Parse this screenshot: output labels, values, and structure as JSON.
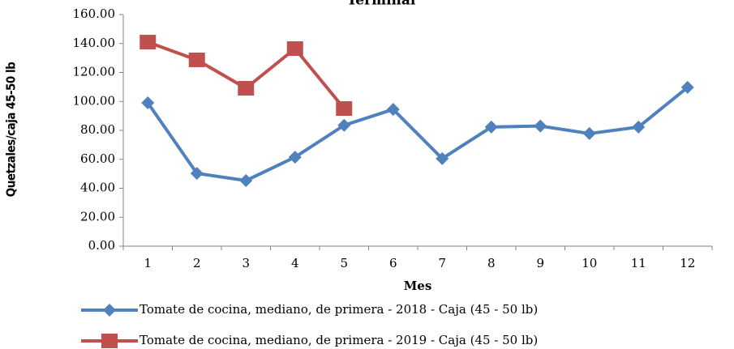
{
  "chart_data": {
    "type": "line",
    "title": "Terminal",
    "x_label": "Mes",
    "y_label": "Quetzales/caja 45-50 lb",
    "categories": [
      "1",
      "2",
      "3",
      "4",
      "5",
      "6",
      "7",
      "8",
      "9",
      "10",
      "11",
      "12"
    ],
    "series": [
      {
        "name": "Tomate de cocina, mediano, de primera - 2018 - Caja (45 - 50 lb)",
        "color": "#4f81bd",
        "marker": "diamond",
        "values": [
          99,
          50.3,
          45.3,
          61.5,
          83.5,
          94.5,
          60.5,
          82.3,
          83,
          77.8,
          82.3,
          109.7
        ]
      },
      {
        "name": "Tomate de cocina, mediano, de primera - 2019 - Caja (45 - 50 lb)",
        "color": "#c0504d",
        "marker": "square",
        "values": [
          141,
          128.7,
          109.1,
          136.5,
          95.1,
          null,
          null,
          null,
          null,
          null,
          null,
          null
        ]
      }
    ],
    "ylim": [
      0,
      160
    ],
    "yticks": [
      {
        "value": 0,
        "label": "0.00"
      },
      {
        "value": 20,
        "label": "20.00"
      },
      {
        "value": 40,
        "label": "40.00"
      },
      {
        "value": 60,
        "label": "60.00"
      },
      {
        "value": 80,
        "label": "80.00"
      },
      {
        "value": 100,
        "label": "100.00"
      },
      {
        "value": 120,
        "label": "120.00"
      },
      {
        "value": 140,
        "label": "140.00"
      },
      {
        "value": 160,
        "label": "160.00"
      }
    ],
    "grid": false
  }
}
